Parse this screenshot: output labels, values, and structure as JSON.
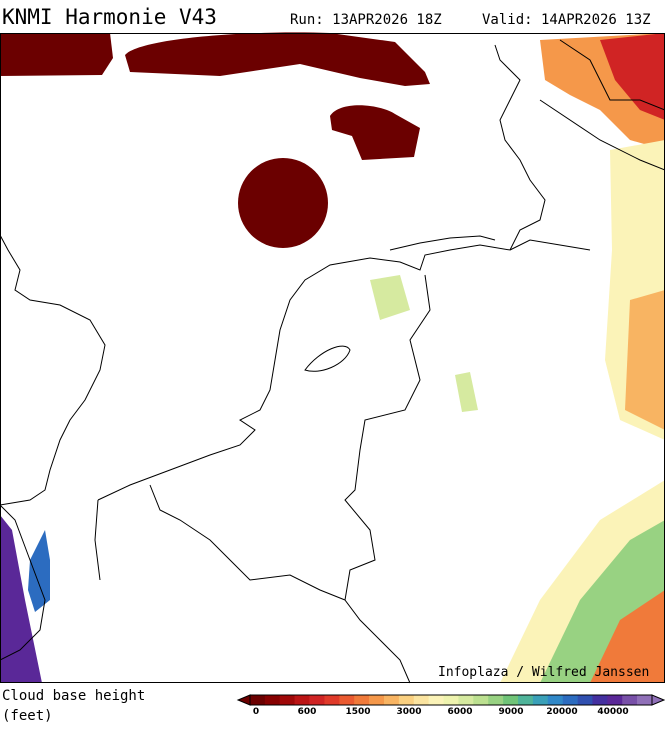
{
  "header": {
    "title": "KNMI Harmonie V43",
    "run": "Run: 13APR2026 18Z",
    "valid": "Valid: 14APR2026 13Z"
  },
  "map": {
    "credit": "Infoplaza / Wilfred Janssen"
  },
  "legend": {
    "title": "Cloud base height",
    "unit": "(feet)",
    "labels": [
      "0",
      "600",
      "1500",
      "3000",
      "6000",
      "9000",
      "20000",
      "40000"
    ],
    "colors": [
      "#6b0000",
      "#860000",
      "#a00808",
      "#bb1414",
      "#d02424",
      "#e03a2a",
      "#ea5a30",
      "#f07a3a",
      "#f5984a",
      "#f8b462",
      "#fad080",
      "#fbe4a0",
      "#fbf3b8",
      "#eef3ae",
      "#d6eaa0",
      "#bce090",
      "#98d282",
      "#70c478",
      "#4fb49a",
      "#3aa0b8",
      "#3088c8",
      "#2c6cc0",
      "#3050b0",
      "#4430a0",
      "#5a2898",
      "#7850a8",
      "#9070b8"
    ]
  }
}
